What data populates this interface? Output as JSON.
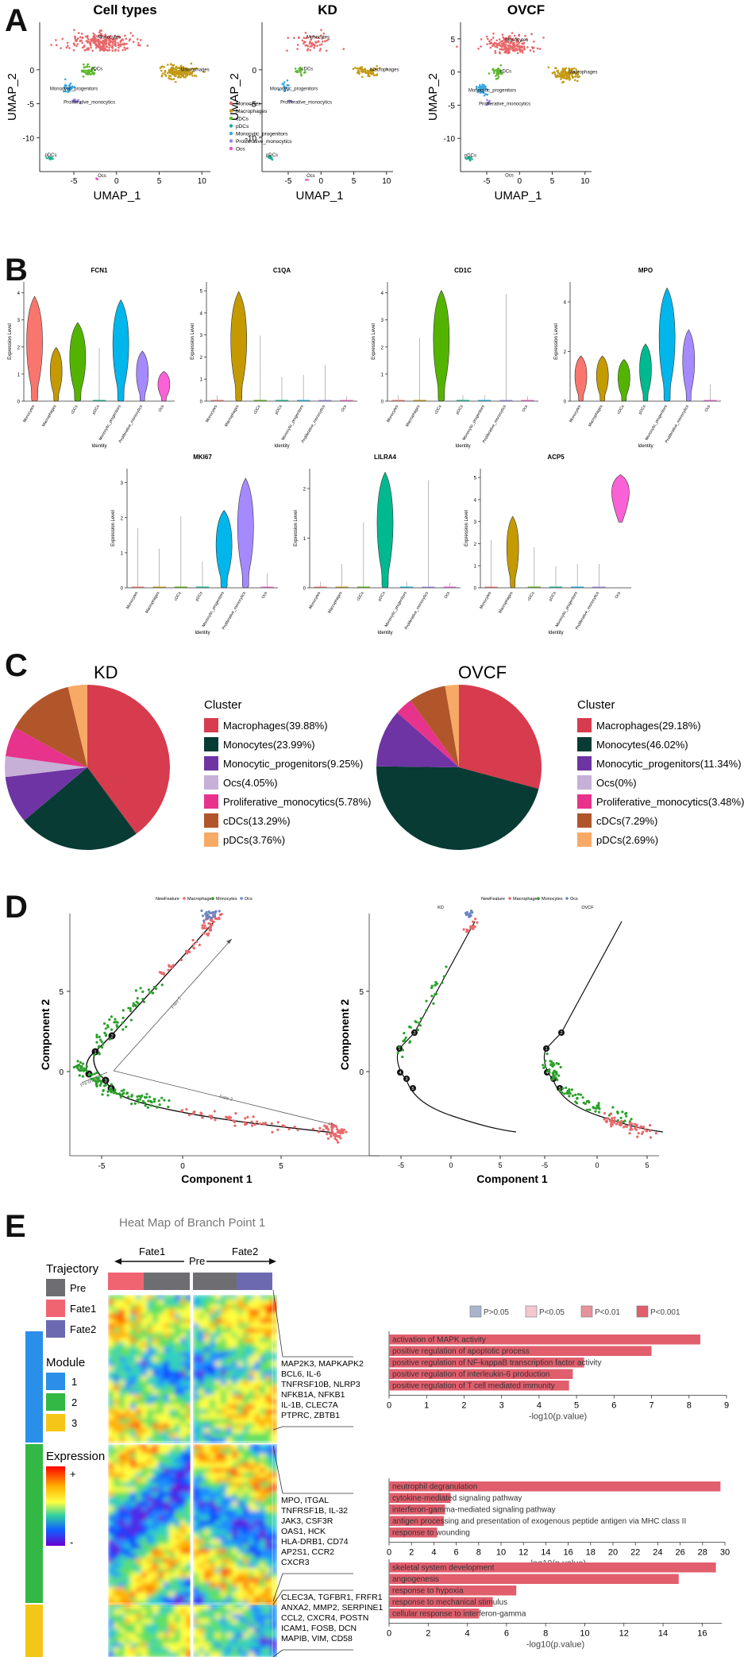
{
  "panels": {
    "A": "A",
    "B": "B",
    "C": "C",
    "D": "D",
    "E": "E"
  },
  "panelA": {
    "xlabel": "UMAP_1",
    "ylabel": "UMAP_2",
    "plots": [
      {
        "title": "Cell types",
        "xticks": [
          "-5",
          "0",
          "5",
          "10"
        ],
        "yticks": [
          "0",
          "-5",
          "-10"
        ],
        "labels": [
          "Monocytes",
          "Macrophages",
          "cDCs",
          "Monocytic_progenitors",
          "Proliferative_monocytics",
          "pDCs",
          "Ocs"
        ]
      },
      {
        "title": "KD",
        "xticks": [
          "-5",
          "0",
          "5",
          "10"
        ],
        "yticks": [
          "0",
          "-5",
          "-10"
        ],
        "labels": [
          "Monocytes",
          "Macrophages",
          "cDCs",
          "Monocytic_progenitors",
          "Proliferative_monocytics",
          "pDCs",
          "Ocs"
        ]
      },
      {
        "title": "OVCF",
        "xticks": [
          "-5",
          "0",
          "5",
          "10"
        ],
        "yticks": [
          "5",
          "0",
          "-5",
          "-10"
        ],
        "labels": [
          "Monocytes",
          "Macrophages",
          "cDCs",
          "Monocytic_progenitors",
          "Proliferative_monocytics",
          "pDCs",
          "Ocs"
        ]
      }
    ],
    "legend": [
      {
        "name": "Monocytes",
        "color": "#e8686b"
      },
      {
        "name": "Macrophages",
        "color": "#c49a14"
      },
      {
        "name": "cDCs",
        "color": "#5db82f"
      },
      {
        "name": "pDCs",
        "color": "#1eae93"
      },
      {
        "name": "Monocytic_progenitors",
        "color": "#3ba6e3"
      },
      {
        "name": "Proliferative_monocytics",
        "color": "#9b83e5"
      },
      {
        "name": "Ocs",
        "color": "#ea54c6"
      }
    ]
  },
  "panelB": {
    "ylabel": "Expression Level",
    "xlabel": "Identity",
    "identities": [
      "Monocytes",
      "Macrophages",
      "cDCs",
      "pDCs",
      "Monocytic_progenitors",
      "Proliferative_monocytics",
      "Ocs"
    ],
    "colors": [
      "#f8766d",
      "#c49a00",
      "#53b400",
      "#00b98f",
      "#00b6eb",
      "#a58aff",
      "#fb61d7"
    ],
    "genes": [
      {
        "name": "FCN1",
        "yticks": [
          "0",
          "1",
          "2",
          "3",
          "4"
        ],
        "heights": [
          0.88,
          0.45,
          0.66,
          0.45,
          0.85,
          0.42,
          0.25
        ]
      },
      {
        "name": "C1QA",
        "yticks": [
          "0",
          "1",
          "2",
          "3",
          "4",
          "5"
        ],
        "heights": [
          0.05,
          0.92,
          0.55,
          0.2,
          0.22,
          0.3,
          0.04
        ]
      },
      {
        "name": "CD1C",
        "yticks": [
          "0",
          "1",
          "2",
          "3",
          "4"
        ],
        "heights": [
          0.05,
          0.53,
          0.93,
          0.05,
          0.05,
          0.9,
          0.04
        ]
      },
      {
        "name": "MPO",
        "yticks": [
          "0",
          "2",
          "4"
        ],
        "heights": [
          0.38,
          0.38,
          0.35,
          0.48,
          0.95,
          0.6,
          0.14
        ]
      },
      {
        "name": "MKI67",
        "yticks": [
          "0",
          "1",
          "2",
          "3"
        ],
        "heights": [
          0.5,
          0.33,
          0.6,
          0.22,
          0.65,
          0.92,
          0.12
        ]
      },
      {
        "name": "LILRA4",
        "yticks": [
          "0",
          "1",
          "2"
        ],
        "heights": [
          0.05,
          0.2,
          0.55,
          0.97,
          0.05,
          0.9,
          0.04
        ]
      },
      {
        "name": "ACP5",
        "yticks": [
          "0",
          "1",
          "2",
          "3",
          "4",
          "5"
        ],
        "heights": [
          0.4,
          0.6,
          0.34,
          0.18,
          0.2,
          0.2,
          0.95
        ]
      }
    ]
  },
  "panelC": {
    "legend_title": "Cluster",
    "KD": {
      "title": "KD",
      "slices": [
        {
          "label": "Macrophages(39.88%)",
          "value": 39.88,
          "color": "#d63c4e"
        },
        {
          "label": "Monocytes(23.99%)",
          "value": 23.99,
          "color": "#073b33"
        },
        {
          "label": "Monocytic_progenitors(9.25%)",
          "value": 9.25,
          "color": "#6f34a3"
        },
        {
          "label": "Ocs(4.05%)",
          "value": 4.05,
          "color": "#c6b0d8"
        },
        {
          "label": "Proliferative_monocytics(5.78%)",
          "value": 5.78,
          "color": "#e7338b"
        },
        {
          "label": "cDCs(13.29%)",
          "value": 13.29,
          "color": "#b1562a"
        },
        {
          "label": "pDCs(3.76%)",
          "value": 3.76,
          "color": "#f7aa66"
        }
      ]
    },
    "OVCF": {
      "title": "OVCF",
      "slices": [
        {
          "label": "Macrophages(29.18%)",
          "value": 29.18,
          "color": "#d63c4e"
        },
        {
          "label": "Monocytes(46.02%)",
          "value": 46.02,
          "color": "#073b33"
        },
        {
          "label": "Monocytic_progenitors(11.34%)",
          "value": 11.34,
          "color": "#6f34a3"
        },
        {
          "label": "Ocs(0%)",
          "value": 0,
          "color": "#c6b0d8"
        },
        {
          "label": "Proliferative_monocytics(3.48%)",
          "value": 3.48,
          "color": "#e7338b"
        },
        {
          "label": "cDCs(7.29%)",
          "value": 7.29,
          "color": "#b1562a"
        },
        {
          "label": "pDCs(2.69%)",
          "value": 2.69,
          "color": "#f7aa66"
        }
      ]
    }
  },
  "panelD": {
    "legend_label": "NewFeature",
    "legend_items": [
      {
        "name": "Macrophages",
        "color": "#e8686b"
      },
      {
        "name": "Monocytes",
        "color": "#2aa02a"
      },
      {
        "name": "Ocs",
        "color": "#6b85c4"
      }
    ],
    "xlabel": "Component 1",
    "ylabel": "Component 2",
    "left_xticks": [
      "-5",
      "0",
      "5"
    ],
    "left_yticks": [
      "5",
      "0"
    ],
    "right_xticks": [
      "-5",
      "0",
      "5",
      "-5",
      "0",
      "5"
    ],
    "right_yticks": [
      "5",
      "0"
    ],
    "fate1": "Fate 1",
    "fate2": "Fate 2",
    "pre_branch": "Pre-branch",
    "facets": [
      "KD",
      "OVCF"
    ],
    "nodes": [
      "2",
      "1",
      "3",
      "4",
      "5"
    ]
  },
  "panelE": {
    "heatmap_title": "Heat Map of Branch Point 1",
    "trajectory_title": "Trajectory",
    "trajectory_items": [
      {
        "name": "Pre",
        "color": "#6e6e72"
      },
      {
        "name": "Fate1",
        "color": "#f06472"
      },
      {
        "name": "Fate2",
        "color": "#6d69b0"
      }
    ],
    "module_title": "Module",
    "module_items": [
      {
        "name": "1",
        "color": "#2a8fe8"
      },
      {
        "name": "2",
        "color": "#33b845"
      },
      {
        "name": "3",
        "color": "#f5c518"
      }
    ],
    "expression_title": "Expression",
    "expr_plus": "+",
    "expr_minus": "-",
    "arrow_fate1": "Fate1",
    "arrow_pre": "Pre",
    "arrow_fate2": "Fate2",
    "gene_groups": [
      [
        "MAP2K3, MAPKAPK2",
        "BCL6, IL-6",
        "TNFRSF10B, NLRP3",
        "NFKB1A, NFKB1",
        "IL-1B, CLEC7A",
        "PTPRC, ZBTB1"
      ],
      [
        "MPO, ITGAL",
        "TNFRSF1B, IL-32",
        "JAK3, CSF3R",
        "OAS1, HCK",
        "HLA-DRB1, CD74",
        "AP2S1, CCR2",
        "CXCR3"
      ],
      [
        "CLEC3A, TGFBR1, FRFR1",
        "ANXA2, MMP2, SERPINE1",
        "CCL2, CXCR4, POSTN",
        "ICAM1, FOSB, DCN",
        "MAPIB, VIM, CD58"
      ]
    ],
    "pvalue_legend": [
      {
        "label": "P>0.05",
        "color": "#a9b4cf"
      },
      {
        "label": "P<0.05",
        "color": "#f3c9cf"
      },
      {
        "label": "P<0.01",
        "color": "#e8919b"
      },
      {
        "label": "P<0.001",
        "color": "#e15e6d"
      }
    ],
    "bar_xlabel": "-log10(p.value)",
    "bar_charts": [
      {
        "xmax": 9,
        "ticks": [
          "0",
          "1",
          "2",
          "3",
          "4",
          "5",
          "6",
          "7",
          "8",
          "9"
        ],
        "terms": [
          {
            "term": "activation of MAPK activity",
            "value": 8.3
          },
          {
            "term": "positive regulation of apoptotic process",
            "value": 7.0
          },
          {
            "term": "positive regulation of NF-kappaB transcription factor activity",
            "value": 5.2
          },
          {
            "term": "positive regulation of interleukin-6 production",
            "value": 4.9
          },
          {
            "term": "positive regulation of T cell mediated immunity",
            "value": 4.8
          }
        ]
      },
      {
        "xmax": 30,
        "ticks": [
          "0",
          "2",
          "4",
          "6",
          "8",
          "10",
          "12",
          "14",
          "16",
          "18",
          "20",
          "22",
          "24",
          "26",
          "28",
          "30"
        ],
        "terms": [
          {
            "term": "neutrophil degranulation",
            "value": 29.6
          },
          {
            "term": "cytokine-mediated signaling pathway",
            "value": 5.5
          },
          {
            "term": "interferon-gamma-mediated signaling pathway",
            "value": 5.0
          },
          {
            "term": "antigen processing and presentation of exogenous peptide antigen via MHC class II",
            "value": 4.9
          },
          {
            "term": "response to wounding",
            "value": 4.3
          }
        ]
      },
      {
        "xmax": 17,
        "ticks": [
          "0",
          "2",
          "4",
          "6",
          "8",
          "10",
          "12",
          "14",
          "16"
        ],
        "terms": [
          {
            "term": "skeletal system development",
            "value": 16.7
          },
          {
            "term": "angiogenesis",
            "value": 14.8
          },
          {
            "term": "response to hypoxia",
            "value": 6.5
          },
          {
            "term": "response to mechanical stimulus",
            "value": 5.3
          },
          {
            "term": "cellular response to interferon-gamma",
            "value": 4.6
          }
        ]
      }
    ]
  }
}
